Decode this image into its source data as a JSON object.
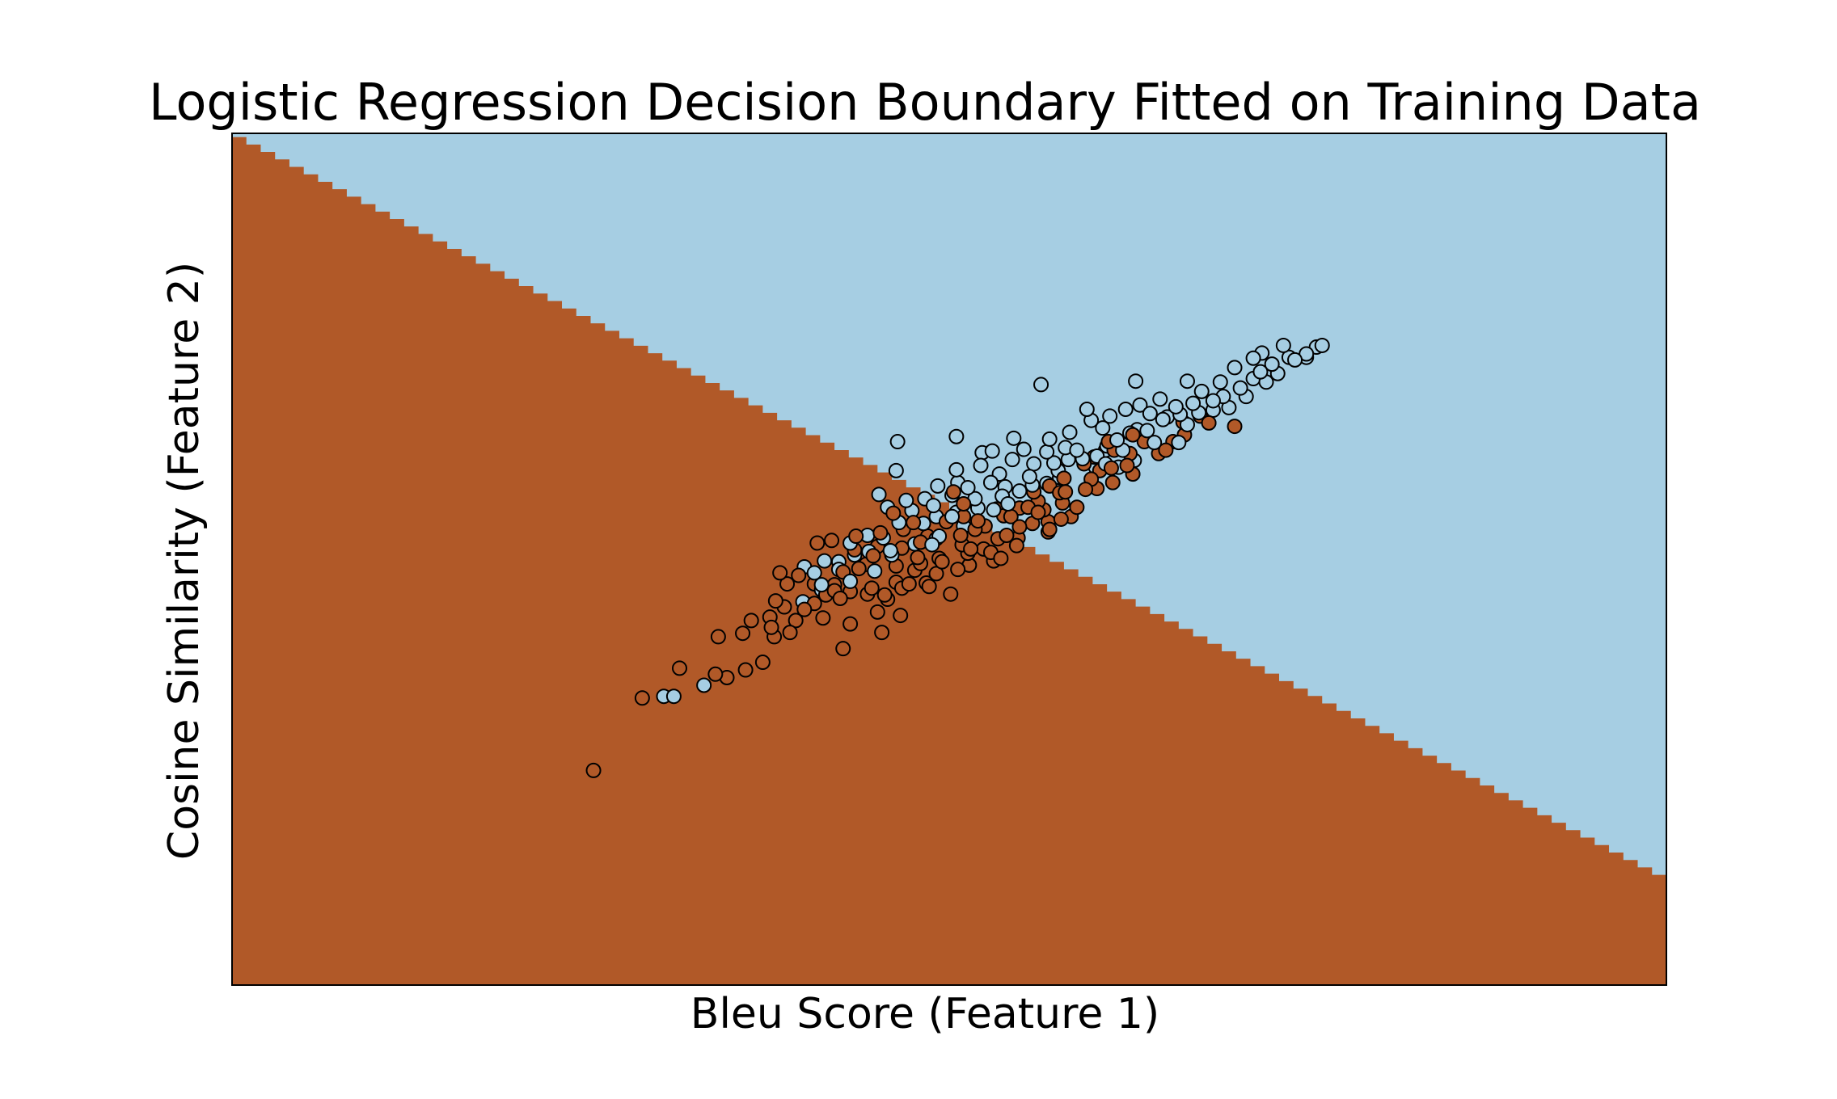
{
  "chart_data": {
    "type": "scatter",
    "title": "Logistic Regression Decision Boundary Fitted on Training Data",
    "xlabel": "Bleu Score (Feature 1)",
    "ylabel": "Cosine Similarity (Feature 2)",
    "xlim": [
      0,
      100
    ],
    "ylim": [
      0,
      100
    ],
    "ticks_shown": false,
    "grid": false,
    "legend": "none",
    "colors": {
      "region_class_0": "#b15928",
      "region_class_1": "#a6cee3",
      "point_class_0": "#b15928",
      "point_class_1": "#a6cee3",
      "edge": "#000000"
    },
    "decision_boundary": {
      "description_points": [
        [
          0,
          100
        ],
        [
          100,
          12.5
        ]
      ],
      "below_class": 0,
      "above_class": 1,
      "step_count": 100
    },
    "series": [
      {
        "class": 0,
        "points": [
          [
            25.2,
            25.2
          ],
          [
            33.7,
            36.5
          ],
          [
            33.9,
            40.9
          ],
          [
            37.0,
            37.9
          ],
          [
            37.8,
            40.9
          ],
          [
            37.6,
            42.0
          ],
          [
            42.6,
            39.5
          ],
          [
            43.1,
            42.4
          ],
          [
            45.3,
            41.4
          ],
          [
            39.5,
            48.1
          ],
          [
            40.6,
            44.8
          ],
          [
            41.4,
            45.8
          ],
          [
            42.4,
            45.4
          ],
          [
            43.7,
            48.9
          ],
          [
            44.6,
            46.6
          ],
          [
            45.5,
            45.8
          ],
          [
            46.7,
            46.6
          ],
          [
            47.6,
            48.7
          ],
          [
            48.6,
            46.8
          ],
          [
            48.0,
            49.5
          ],
          [
            49.5,
            49.7
          ],
          [
            50.6,
            48.8
          ],
          [
            51.5,
            51.2
          ],
          [
            52.4,
            51.2
          ],
          [
            53.6,
            50.1
          ],
          [
            54.0,
            52.8
          ],
          [
            54.9,
            53.8
          ],
          [
            55.8,
            54.2
          ],
          [
            56.6,
            55.8
          ],
          [
            57.9,
            56.6
          ],
          [
            58.1,
            57.9
          ],
          [
            59.5,
            58.2
          ],
          [
            60.3,
            58.3
          ],
          [
            60.5,
            60.4
          ],
          [
            61.4,
            59.0
          ],
          [
            61.5,
            62.8
          ],
          [
            62.4,
            61.0
          ],
          [
            62.8,
            60.0
          ],
          [
            63.6,
            63.8
          ],
          [
            64.6,
            62.4
          ],
          [
            65.6,
            63.8
          ],
          [
            66.3,
            66.1
          ],
          [
            67.5,
            66.8
          ],
          [
            68.1,
            66.0
          ],
          [
            69.9,
            65.6
          ],
          [
            50.3,
            57.9
          ],
          [
            46.1,
            55.4
          ],
          [
            43.4,
            51.1
          ],
          [
            44.7,
            50.4
          ],
          [
            40.8,
            51.9
          ],
          [
            38.7,
            47.1
          ],
          [
            38.2,
            48.4
          ],
          [
            41.8,
            52.2
          ],
          [
            42.6,
            48.5
          ],
          [
            43.5,
            52.7
          ],
          [
            47.8,
            50.2
          ],
          [
            48.5,
            52.7
          ],
          [
            49.3,
            50.1
          ],
          [
            50.8,
            52.8
          ],
          [
            51.0,
            55.0
          ],
          [
            52.5,
            53.9
          ],
          [
            53.3,
            55.9
          ],
          [
            54.9,
            56.0
          ],
          [
            56.2,
            56.8
          ],
          [
            57.0,
            58.6
          ],
          [
            58.0,
            59.5
          ],
          [
            59.4,
            61.2
          ],
          [
            60.1,
            62.0
          ],
          [
            61.1,
            63.8
          ],
          [
            62.8,
            64.6
          ],
          [
            65.1,
            62.8
          ],
          [
            66.4,
            64.6
          ],
          [
            62.6,
            62.4
          ],
          [
            55.9,
            57.9
          ],
          [
            53.8,
            55.1
          ],
          [
            52.0,
            54.5
          ],
          [
            45.7,
            45.3
          ],
          [
            46.7,
            51.3
          ],
          [
            47.5,
            54.3
          ],
          [
            49.1,
            48.3
          ],
          [
            51.4,
            49.3
          ],
          [
            52.9,
            50.8
          ],
          [
            54.3,
            55.0
          ],
          [
            55.5,
            56.1
          ],
          [
            57.7,
            57.8
          ],
          [
            56.9,
            54.4
          ],
          [
            58.9,
            56.1
          ],
          [
            59.9,
            59.4
          ],
          [
            61.3,
            60.7
          ],
          [
            39.9,
            44.1
          ],
          [
            40.6,
            47.1
          ],
          [
            44.2,
            49.4
          ],
          [
            45.2,
            53.1
          ],
          [
            46.3,
            49.2
          ],
          [
            48.0,
            52.0
          ],
          [
            49.8,
            54.4
          ],
          [
            41.2,
            43.1
          ],
          [
            42.0,
            47.0
          ],
          [
            43.1,
            46.2
          ],
          [
            37.9,
            45.1
          ],
          [
            38.5,
            44.4
          ],
          [
            34.5,
            36.1
          ],
          [
            35.8,
            37.0
          ],
          [
            28.6,
            33.7
          ],
          [
            31.2,
            37.2
          ],
          [
            48.4,
            47.2
          ],
          [
            50.1,
            45.9
          ],
          [
            46.3,
            47.3
          ],
          [
            47.2,
            47.1
          ],
          [
            44.3,
            45.9
          ],
          [
            46.6,
            43.4
          ],
          [
            45.0,
            43.8
          ],
          [
            42.0,
            46.3
          ],
          [
            39.3,
            42.8
          ],
          [
            38.9,
            41.4
          ],
          [
            37.5,
            43.2
          ],
          [
            36.2,
            42.8
          ],
          [
            35.6,
            41.3
          ],
          [
            53.1,
            49.8
          ],
          [
            54.7,
            51.6
          ],
          [
            56.9,
            53.2
          ],
          [
            57.8,
            54.7
          ],
          [
            58.5,
            55.0
          ],
          [
            53.4,
            52.4
          ],
          [
            54.8,
            52.5
          ],
          [
            56.2,
            55.5
          ],
          [
            57.0,
            53.5
          ],
          [
            50.9,
            51.7
          ],
          [
            51.8,
            53.5
          ],
          [
            51.0,
            56.5
          ],
          [
            51.3,
            50.7
          ],
          [
            46.8,
            53.5
          ],
          [
            45.0,
            51.5
          ]
        ]
      },
      {
        "class": 1,
        "points": [
          [
            30.8,
            33.9
          ],
          [
            30.1,
            33.9
          ],
          [
            32.9,
            35.2
          ],
          [
            39.9,
            49.1
          ],
          [
            40.6,
            48.4
          ],
          [
            41.3,
            49.8
          ],
          [
            42.3,
            48.8
          ],
          [
            43.4,
            50.5
          ],
          [
            44.4,
            50.9
          ],
          [
            45.4,
            52.5
          ],
          [
            46.0,
            50.5
          ],
          [
            47.6,
            51.8
          ],
          [
            48.2,
            54.2
          ],
          [
            49.3,
            52.7
          ],
          [
            50.2,
            55.0
          ],
          [
            51.0,
            53.9
          ],
          [
            52.0,
            56.0
          ],
          [
            53.1,
            55.8
          ],
          [
            53.7,
            57.4
          ],
          [
            54.9,
            58.0
          ],
          [
            55.8,
            58.7
          ],
          [
            56.8,
            58.9
          ],
          [
            57.6,
            60.4
          ],
          [
            58.3,
            61.7
          ],
          [
            59.3,
            61.8
          ],
          [
            60.3,
            62.1
          ],
          [
            61.0,
            63.3
          ],
          [
            61.7,
            64.0
          ],
          [
            62.6,
            64.8
          ],
          [
            63.8,
            65.1
          ],
          [
            64.9,
            66.4
          ],
          [
            66.1,
            67.0
          ],
          [
            67.0,
            68.3
          ],
          [
            68.4,
            68.6
          ],
          [
            69.1,
            69.1
          ],
          [
            70.3,
            70.1
          ],
          [
            71.2,
            71.2
          ],
          [
            72.1,
            70.8
          ],
          [
            72.9,
            71.8
          ],
          [
            73.7,
            73.7
          ],
          [
            74.9,
            74.1
          ],
          [
            75.6,
            74.9
          ],
          [
            73.3,
            75.1
          ],
          [
            71.2,
            73.6
          ],
          [
            71.8,
            74.2
          ],
          [
            76.0,
            75.1
          ],
          [
            66.6,
            70.9
          ],
          [
            63.0,
            70.9
          ],
          [
            56.4,
            70.5
          ],
          [
            54.5,
            64.2
          ],
          [
            50.5,
            64.4
          ],
          [
            46.4,
            63.8
          ],
          [
            46.3,
            60.4
          ],
          [
            50.5,
            60.5
          ],
          [
            52.2,
            61.0
          ],
          [
            52.9,
            59.0
          ],
          [
            55.6,
            59.7
          ],
          [
            57.3,
            61.3
          ],
          [
            58.1,
            63.1
          ],
          [
            60.9,
            62.8
          ],
          [
            62.1,
            62.8
          ],
          [
            63.1,
            65.2
          ],
          [
            64.3,
            63.7
          ],
          [
            66.0,
            63.7
          ],
          [
            66.6,
            65.8
          ],
          [
            65.2,
            66.7
          ],
          [
            68.4,
            67.5
          ],
          [
            69.5,
            67.8
          ],
          [
            70.7,
            69.1
          ],
          [
            67.4,
            67.2
          ],
          [
            65.8,
            67.9
          ],
          [
            64.0,
            67.1
          ],
          [
            60.7,
            65.4
          ],
          [
            59.6,
            67.6
          ],
          [
            57.0,
            64.1
          ],
          [
            55.2,
            62.9
          ],
          [
            53.5,
            60.0
          ],
          [
            52.3,
            62.5
          ],
          [
            50.6,
            59.0
          ],
          [
            49.2,
            58.6
          ],
          [
            48.3,
            57.1
          ],
          [
            47.0,
            56.9
          ],
          [
            45.7,
            56.1
          ],
          [
            45.1,
            57.6
          ],
          [
            44.3,
            52.8
          ],
          [
            43.1,
            51.9
          ],
          [
            42.3,
            49.7
          ],
          [
            41.1,
            47.0
          ],
          [
            46.5,
            54.3
          ],
          [
            47.4,
            55.7
          ],
          [
            48.9,
            56.3
          ],
          [
            50.2,
            57.5
          ],
          [
            55.9,
            61.2
          ],
          [
            56.8,
            62.6
          ],
          [
            58.4,
            64.9
          ],
          [
            59.9,
            66.3
          ],
          [
            61.2,
            66.8
          ],
          [
            62.3,
            67.6
          ],
          [
            63.3,
            68.1
          ],
          [
            64.7,
            68.8
          ],
          [
            67.6,
            69.7
          ],
          [
            68.9,
            70.8
          ],
          [
            69.9,
            72.5
          ],
          [
            71.7,
            72.0
          ],
          [
            72.5,
            72.9
          ],
          [
            74.1,
            73.4
          ],
          [
            74.9,
            73.7
          ],
          [
            39.8,
            45.0
          ],
          [
            41.1,
            46.4
          ],
          [
            43.1,
            47.4
          ],
          [
            44.8,
            48.6
          ],
          [
            45.9,
            51.0
          ],
          [
            48.8,
            51.7
          ],
          [
            49.1,
            55.0
          ],
          [
            50.5,
            55.5
          ],
          [
            51.8,
            57.1
          ],
          [
            53.9,
            58.5
          ],
          [
            54.1,
            56.5
          ],
          [
            57.7,
            59.6
          ],
          [
            58.9,
            62.8
          ],
          [
            60.2,
            60.8
          ],
          [
            61.8,
            60.8
          ],
          [
            62.9,
            61.6
          ],
          [
            60.9,
            61.2
          ],
          [
            54.4,
            61.7
          ],
          [
            53.0,
            62.7
          ],
          [
            51.3,
            58.4
          ],
          [
            49.1,
            52.4
          ]
        ]
      }
    ]
  }
}
